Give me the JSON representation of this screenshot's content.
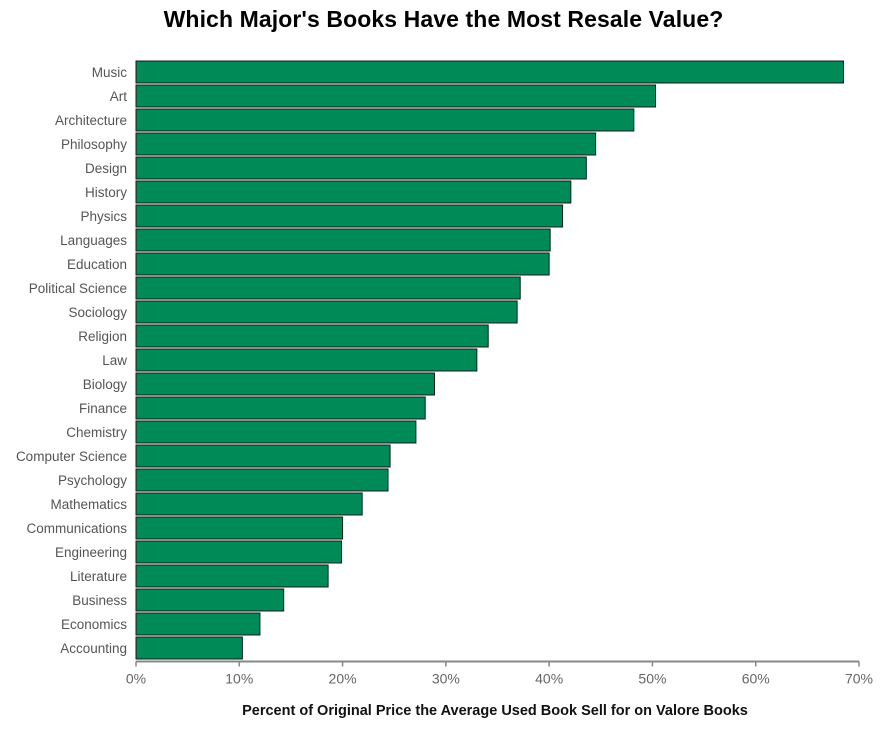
{
  "chart_data": {
    "type": "bar",
    "orientation": "horizontal",
    "title": "Which Major's Books Have the Most Resale Value?",
    "xlabel": "Percent of Original Price the Average Used Book Sell for on Valore Books",
    "ylabel": "",
    "xlim": [
      0,
      70
    ],
    "x_ticks": [
      "0%",
      "10%",
      "20%",
      "30%",
      "40%",
      "50%",
      "60%",
      "70%"
    ],
    "grid": false,
    "bar_color": "#008a57",
    "categories": [
      "Music",
      "Art",
      "Architecture",
      "Philosophy",
      "Design",
      "History",
      "Physics",
      "Languages",
      "Education",
      "Political Science",
      "Sociology",
      "Religion",
      "Law",
      "Biology",
      "Finance",
      "Chemistry",
      "Computer Science",
      "Psychology",
      "Mathematics",
      "Communications",
      "Engineering",
      "Literature",
      "Business",
      "Economics",
      "Accounting"
    ],
    "values": [
      68.5,
      50.3,
      48.2,
      44.5,
      43.6,
      42.1,
      41.3,
      40.1,
      40.0,
      37.2,
      36.9,
      34.1,
      33.0,
      28.9,
      28.0,
      27.1,
      24.6,
      24.4,
      21.9,
      20.0,
      19.9,
      18.6,
      14.3,
      12.0,
      10.3
    ]
  }
}
